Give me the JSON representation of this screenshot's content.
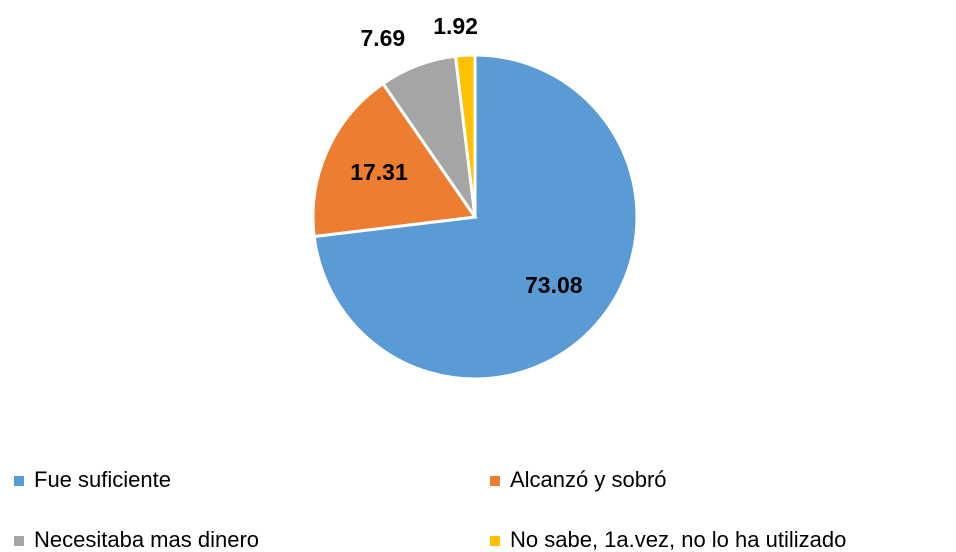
{
  "chart_data": {
    "type": "pie",
    "categories": [
      "Fue suficiente",
      "Alcanzó y sobró",
      "Necesitaba mas dinero",
      "No sabe, 1a.vez, no lo ha utilizado"
    ],
    "values": [
      73.08,
      17.31,
      7.69,
      1.92
    ],
    "colors": [
      "#5b9bd5",
      "#ed7d31",
      "#a5a5a5",
      "#ffc000"
    ],
    "legend": "bottom"
  }
}
